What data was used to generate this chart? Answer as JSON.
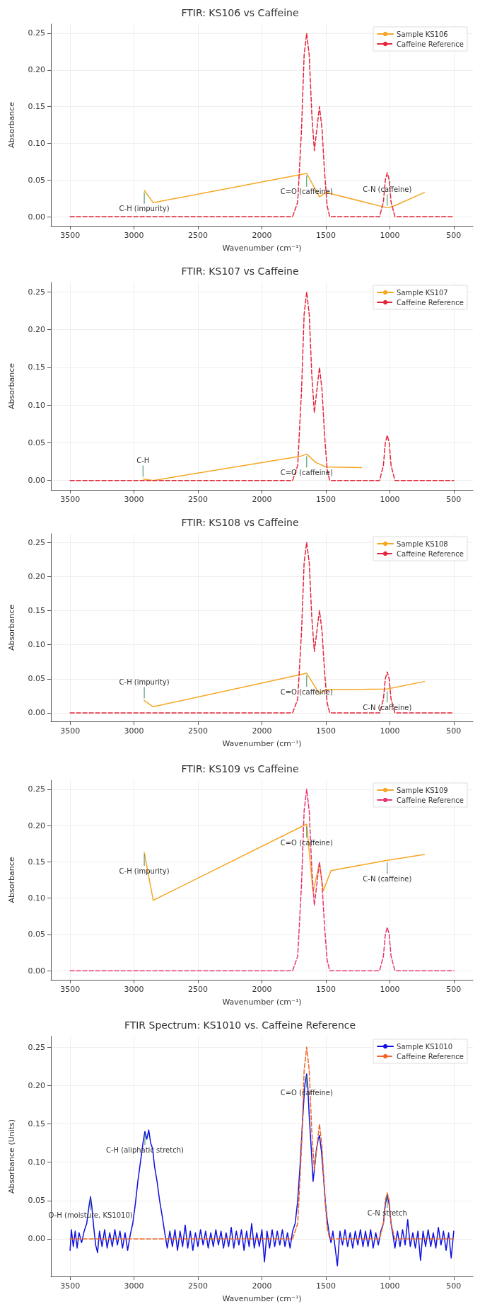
{
  "chart_data": [
    {
      "type": "line",
      "title": "FTIR: KS106 vs Caffeine",
      "xlabel": "Wavenumber (cm⁻¹)",
      "ylabel": "Absorbance",
      "xlim": [
        3650,
        350
      ],
      "xticks": [
        3500,
        3000,
        2500,
        2000,
        1500,
        1000,
        500
      ],
      "ylim": [
        -0.0125,
        0.2625
      ],
      "yticks": [
        {
          "value": 0,
          "label": "0.00"
        },
        0.05,
        {
          "value": 0.1,
          "label": "0.10"
        },
        0.15,
        {
          "value": 0.2,
          "label": "0.20"
        },
        0.25
      ],
      "grid": true,
      "legend": "top right",
      "annotations": [
        {
          "text": "C-H (impurity)",
          "x": 2920,
          "y": 0.036
        },
        {
          "text": "C=O (caffeine)",
          "x": 1650,
          "y": 0.059
        },
        {
          "text": "C-N (caffeine)",
          "x": 1020,
          "y": 0.012
        }
      ],
      "series": [
        {
          "name": "Sample KS106",
          "color": "#f5a623",
          "x": [
            2920,
            2850,
            1650,
            1550,
            1500,
            1020,
            960,
            730
          ],
          "values": [
            0.036,
            0.019,
            0.059,
            0.027,
            0.033,
            0.012,
            0.015,
            0.033
          ]
        },
        {
          "name": "Caffeine Reference",
          "color": "#e3263a",
          "line_style": "dashed",
          "x": [
            3500,
            1760,
            1720,
            1690,
            1670,
            1650,
            1630,
            1610,
            1590,
            1570,
            1550,
            1530,
            1510,
            1490,
            1470,
            1080,
            1050,
            1035,
            1020,
            1005,
            990,
            960,
            500
          ],
          "values": [
            0,
            0,
            0.02,
            0.12,
            0.22,
            0.25,
            0.22,
            0.14,
            0.09,
            0.12,
            0.15,
            0.12,
            0.06,
            0.015,
            0,
            0,
            0.02,
            0.05,
            0.06,
            0.05,
            0.02,
            0,
            0
          ]
        }
      ]
    },
    {
      "type": "line",
      "title": "FTIR: KS107 vs Caffeine",
      "ylabel": "Absorbance",
      "xlim": [
        3650,
        350
      ],
      "xticks": [
        3500,
        3000,
        2500,
        2000,
        1500,
        1000,
        500
      ],
      "ylim": [
        -0.0125,
        0.2625
      ],
      "yticks": [
        {
          "value": 0,
          "label": "0.00"
        },
        0.05,
        {
          "value": 0.1,
          "label": "0.10"
        },
        0.15,
        {
          "value": 0.2,
          "label": "0.20"
        },
        0.25
      ],
      "grid": true,
      "legend": "top right",
      "annotations": [
        {
          "text": "C-H",
          "x": 2930,
          "y": 0.002
        },
        {
          "text": "C=O (caffeine)",
          "x": 1650,
          "y": 0.035
        }
      ],
      "series": [
        {
          "name": "Sample KS107",
          "color": "#f5a623",
          "x": [
            2930,
            2850,
            1700,
            1650,
            1580,
            1500,
            1220
          ],
          "values": [
            0.002,
            0,
            0.032,
            0.035,
            0.024,
            0.018,
            0.017
          ]
        },
        {
          "name": "Caffeine Reference",
          "color": "#e3263a",
          "line_style": "dashed",
          "x": [
            3500,
            1760,
            1720,
            1690,
            1670,
            1650,
            1630,
            1610,
            1590,
            1570,
            1550,
            1530,
            1510,
            1490,
            1470,
            1080,
            1050,
            1035,
            1020,
            1005,
            990,
            960,
            500
          ],
          "values": [
            0,
            0,
            0.02,
            0.12,
            0.22,
            0.25,
            0.22,
            0.14,
            0.09,
            0.12,
            0.15,
            0.12,
            0.06,
            0.015,
            0,
            0,
            0.02,
            0.05,
            0.06,
            0.05,
            0.02,
            0,
            0
          ]
        }
      ]
    },
    {
      "type": "line",
      "title": "FTIR: KS108 vs Caffeine",
      "xlabel": "Wavenumber (cm⁻¹)",
      "ylabel": "Absorbance",
      "xlim": [
        3650,
        350
      ],
      "xticks": [
        3500,
        3000,
        2500,
        2000,
        1500,
        1000,
        500
      ],
      "ylim": [
        -0.0125,
        0.2625
      ],
      "yticks": [
        {
          "value": 0,
          "label": "0.00"
        },
        0.05,
        {
          "value": 0.1,
          "label": "0.10"
        },
        0.15,
        {
          "value": 0.2,
          "label": "0.20"
        },
        0.25
      ],
      "grid": true,
      "legend": "top right",
      "annotations": [
        {
          "text": "C-H (impurity)",
          "x": 2920,
          "y": 0.018
        },
        {
          "text": "C=O (caffeine)",
          "x": 1650,
          "y": 0.058
        },
        {
          "text": "C-N (caffeine)",
          "x": 1020,
          "y": 0.035
        }
      ],
      "series": [
        {
          "name": "Sample KS108",
          "color": "#f5a623",
          "x": [
            2920,
            2850,
            1650,
            1550,
            1500,
            1020,
            730
          ],
          "values": [
            0.018,
            0.009,
            0.058,
            0.028,
            0.034,
            0.035,
            0.046
          ]
        },
        {
          "name": "Caffeine Reference",
          "color": "#e3263a",
          "line_style": "dashed",
          "x": [
            3500,
            1760,
            1720,
            1690,
            1670,
            1650,
            1630,
            1610,
            1590,
            1570,
            1550,
            1530,
            1510,
            1490,
            1470,
            1080,
            1050,
            1035,
            1020,
            1005,
            990,
            960,
            500
          ],
          "values": [
            0,
            0,
            0.02,
            0.12,
            0.22,
            0.25,
            0.22,
            0.14,
            0.09,
            0.12,
            0.15,
            0.12,
            0.06,
            0.015,
            0,
            0,
            0.02,
            0.05,
            0.06,
            0.05,
            0.02,
            0,
            0
          ]
        }
      ]
    },
    {
      "type": "line",
      "title": "FTIR: KS109 vs Caffeine",
      "xlabel": "Wavenumber (cm⁻¹)",
      "ylabel": "Absorbance",
      "xlim": [
        3650,
        350
      ],
      "xticks": [
        3500,
        3000,
        2500,
        2000,
        1500,
        1000,
        500
      ],
      "ylim": [
        -0.0125,
        0.2625
      ],
      "yticks": [
        {
          "value": 0,
          "label": "0.00"
        },
        0.05,
        {
          "value": 0.1,
          "label": "0.10"
        },
        0.15,
        {
          "value": 0.2,
          "label": "0.20"
        },
        0.25
      ],
      "grid": true,
      "legend": "top right",
      "annotations": [
        {
          "text": "C-H (impurity)",
          "x": 2920,
          "y": 0.163
        },
        {
          "text": "C=O (caffeine)",
          "x": 1650,
          "y": 0.202
        },
        {
          "text": "C-N (caffeine)",
          "x": 1020,
          "y": 0.152
        }
      ],
      "series": [
        {
          "name": "Sample KS109",
          "color": "#f5a623",
          "x": [
            2920,
            2850,
            1650,
            1600,
            1550,
            1520,
            1460,
            1020,
            730
          ],
          "values": [
            0.163,
            0.097,
            0.202,
            0.108,
            0.148,
            0.11,
            0.138,
            0.152,
            0.16
          ]
        },
        {
          "name": "Caffeine Reference",
          "color": "#e8366e",
          "line_style": "dashed",
          "x": [
            3500,
            1760,
            1720,
            1690,
            1670,
            1650,
            1630,
            1610,
            1590,
            1570,
            1550,
            1530,
            1510,
            1490,
            1470,
            1080,
            1050,
            1035,
            1020,
            1005,
            990,
            960,
            500
          ],
          "values": [
            0,
            0,
            0.02,
            0.12,
            0.22,
            0.25,
            0.22,
            0.14,
            0.09,
            0.12,
            0.15,
            0.12,
            0.06,
            0.015,
            0,
            0,
            0.02,
            0.05,
            0.06,
            0.05,
            0.02,
            0,
            0
          ]
        }
      ]
    },
    {
      "type": "line",
      "title": "FTIR Spectrum: KS1010 vs. Caffeine Reference",
      "xlabel": "Wavenumber (cm⁻¹)",
      "ylabel": "Absorbance (Units)",
      "xlim": [
        3650,
        350
      ],
      "xticks": [
        3500,
        3000,
        2500,
        2000,
        1500,
        1000,
        500
      ],
      "ylim": [
        -0.049,
        0.264
      ],
      "yticks": [
        {
          "value": 0,
          "label": "0.00"
        },
        0.05,
        {
          "value": 0.1,
          "label": "0.10"
        },
        0.15,
        {
          "value": 0.2,
          "label": "0.20"
        },
        0.25
      ],
      "grid": true,
      "legend": "top right",
      "annotations": [
        {
          "text": "O-H (moisture, KS1010)",
          "x": 3340,
          "y": 0.055
        },
        {
          "text": "C-H (aliphatic stretch)",
          "x": 2915,
          "y": 0.14
        },
        {
          "text": "C=O (caffeine)",
          "x": 1650,
          "y": 0.215
        },
        {
          "text": "C-N stretch",
          "x": 1020,
          "y": 0.058
        }
      ],
      "series": [
        {
          "name": "Sample KS1010",
          "color": "#1010e0",
          "x": [
            3500,
            3490,
            3475,
            3460,
            3445,
            3430,
            3410,
            3390,
            3370,
            3350,
            3340,
            3330,
            3315,
            3300,
            3285,
            3270,
            3250,
            3230,
            3210,
            3190,
            3170,
            3150,
            3130,
            3110,
            3090,
            3070,
            3050,
            3030,
            3010,
            2990,
            2970,
            2950,
            2930,
            2915,
            2900,
            2885,
            2870,
            2855,
            2840,
            2820,
            2800,
            2780,
            2760,
            2740,
            2720,
            2700,
            2680,
            2660,
            2640,
            2620,
            2600,
            2580,
            2560,
            2540,
            2520,
            2500,
            2480,
            2460,
            2440,
            2420,
            2400,
            2380,
            2360,
            2340,
            2320,
            2300,
            2280,
            2260,
            2240,
            2220,
            2200,
            2180,
            2160,
            2140,
            2120,
            2100,
            2080,
            2060,
            2040,
            2020,
            2000,
            1980,
            1960,
            1940,
            1920,
            1900,
            1880,
            1860,
            1840,
            1820,
            1800,
            1780,
            1760,
            1740,
            1720,
            1700,
            1680,
            1665,
            1650,
            1640,
            1630,
            1615,
            1600,
            1590,
            1575,
            1560,
            1550,
            1535,
            1520,
            1505,
            1490,
            1475,
            1460,
            1445,
            1430,
            1410,
            1390,
            1370,
            1350,
            1330,
            1310,
            1290,
            1270,
            1250,
            1230,
            1210,
            1190,
            1170,
            1150,
            1130,
            1110,
            1090,
            1070,
            1050,
            1035,
            1020,
            1005,
            990,
            975,
            960,
            940,
            920,
            900,
            880,
            860,
            840,
            820,
            800,
            780,
            760,
            740,
            720,
            700,
            680,
            660,
            640,
            620,
            600,
            580,
            560,
            540,
            520,
            500
          ],
          "values": [
            -0.015,
            0.012,
            -0.01,
            0.01,
            -0.012,
            0.008,
            -0.005,
            0.01,
            0.02,
            0.045,
            0.055,
            0.042,
            0.015,
            -0.008,
            -0.018,
            0.01,
            -0.01,
            0.012,
            -0.012,
            0.008,
            -0.01,
            0.012,
            -0.008,
            0.01,
            -0.012,
            0.008,
            -0.015,
            0.005,
            0.02,
            0.045,
            0.075,
            0.1,
            0.125,
            0.14,
            0.13,
            0.142,
            0.125,
            0.118,
            0.095,
            0.075,
            0.05,
            0.03,
            0.008,
            -0.012,
            0.01,
            -0.01,
            0.012,
            -0.015,
            0.01,
            -0.01,
            0.018,
            -0.012,
            0.01,
            -0.015,
            0.008,
            -0.01,
            0.012,
            -0.008,
            0.01,
            -0.012,
            0.008,
            -0.01,
            0.012,
            -0.008,
            0.01,
            -0.012,
            0.008,
            -0.01,
            0.015,
            -0.012,
            0.01,
            -0.008,
            0.012,
            -0.015,
            0.01,
            -0.01,
            0.02,
            -0.012,
            0.008,
            -0.01,
            0.012,
            -0.03,
            0.01,
            -0.012,
            0.012,
            -0.01,
            0.01,
            -0.008,
            0.012,
            -0.01,
            0.008,
            -0.012,
            0.01,
            0.02,
            0.05,
            0.1,
            0.16,
            0.2,
            0.215,
            0.195,
            0.16,
            0.12,
            0.075,
            0.09,
            0.115,
            0.13,
            0.135,
            0.115,
            0.085,
            0.05,
            0.025,
            0.008,
            -0.005,
            0.01,
            -0.008,
            -0.035,
            0.01,
            -0.008,
            0.012,
            -0.01,
            0.008,
            -0.012,
            0.01,
            -0.008,
            0.012,
            -0.01,
            0.01,
            -0.01,
            0.012,
            -0.012,
            0.008,
            -0.008,
            0.01,
            0.02,
            0.045,
            0.058,
            0.045,
            0.02,
            0.005,
            -0.012,
            0.01,
            -0.01,
            0.012,
            -0.008,
            0.025,
            -0.01,
            0.008,
            -0.012,
            0.01,
            -0.028,
            0.01,
            -0.01,
            0.012,
            -0.01,
            0.008,
            -0.012,
            0.015,
            -0.008,
            0.01,
            -0.015,
            0.008,
            -0.025,
            0.01
          ]
        },
        {
          "name": "Caffeine Reference",
          "color": "#f0652a",
          "line_style": "dashed",
          "x": [
            3500,
            1760,
            1720,
            1690,
            1670,
            1650,
            1630,
            1610,
            1590,
            1570,
            1550,
            1530,
            1510,
            1490,
            1470,
            1080,
            1050,
            1035,
            1020,
            1005,
            990,
            960,
            500
          ],
          "values": [
            0,
            0,
            0.02,
            0.12,
            0.22,
            0.25,
            0.22,
            0.14,
            0.09,
            0.12,
            0.15,
            0.12,
            0.06,
            0.015,
            0,
            0,
            0.02,
            0.05,
            0.06,
            0.05,
            0.02,
            0,
            0
          ]
        }
      ]
    }
  ]
}
